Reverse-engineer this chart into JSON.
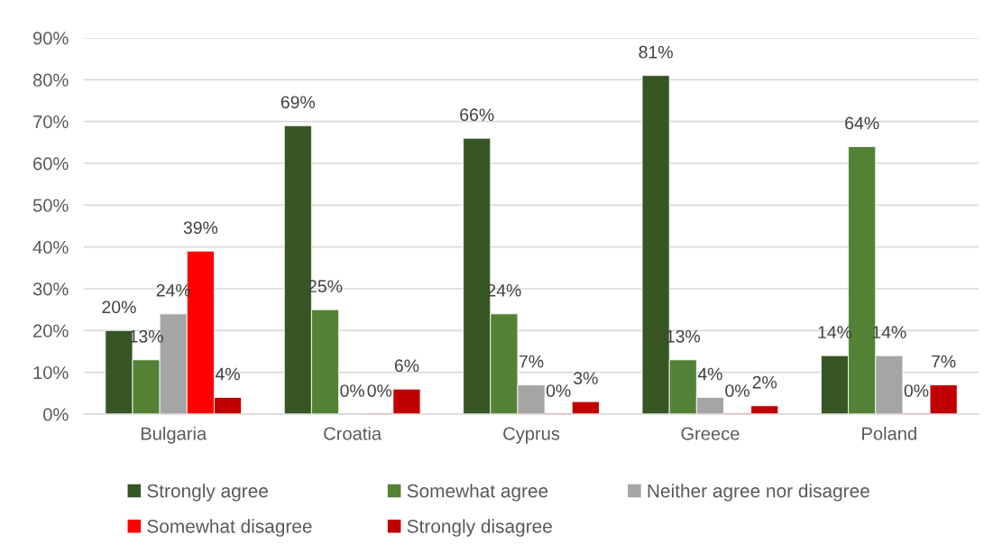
{
  "chart_data": {
    "type": "bar",
    "categories": [
      "Bulgaria",
      "Croatia",
      "Cyprus",
      "Greece",
      "Poland"
    ],
    "series": [
      {
        "name": "Strongly agree",
        "color": "#375623",
        "values": [
          20,
          69,
          66,
          81,
          14
        ],
        "value_labels": [
          "20%",
          "69%",
          "66%",
          "81%",
          "14%"
        ]
      },
      {
        "name": "Somewhat agree",
        "color": "#548235",
        "values": [
          13,
          25,
          24,
          13,
          64
        ],
        "value_labels": [
          "13%",
          "25%",
          "24%",
          "13%",
          "64%"
        ]
      },
      {
        "name": "Neither agree nor disagree",
        "color": "#a5a5a5",
        "values": [
          24,
          0,
          7,
          4,
          14
        ],
        "value_labels": [
          "24%",
          "0%",
          "7%",
          "4%",
          "14%"
        ]
      },
      {
        "name": "Somewhat disagree",
        "color": "#ff0000",
        "values": [
          39,
          0,
          0,
          0,
          0
        ],
        "value_labels": [
          "39%",
          "0%",
          "0%",
          "0%",
          "0%"
        ]
      },
      {
        "name": "Strongly disagree",
        "color": "#c00000",
        "values": [
          4,
          6,
          3,
          2,
          7
        ],
        "value_labels": [
          "4%",
          "6%",
          "3%",
          "2%",
          "7%"
        ]
      }
    ],
    "ylim": [
      0,
      90
    ],
    "yticks": [
      {
        "value": 0,
        "label": "0%"
      },
      {
        "value": 10,
        "label": "10%"
      },
      {
        "value": 20,
        "label": "20%"
      },
      {
        "value": 30,
        "label": "30%"
      },
      {
        "value": 40,
        "label": "40%"
      },
      {
        "value": 50,
        "label": "50%"
      },
      {
        "value": 60,
        "label": "60%"
      },
      {
        "value": 70,
        "label": "70%"
      },
      {
        "value": 80,
        "label": "80%"
      },
      {
        "value": 90,
        "label": "90%"
      }
    ],
    "grid": "y",
    "legend": "bottom"
  }
}
